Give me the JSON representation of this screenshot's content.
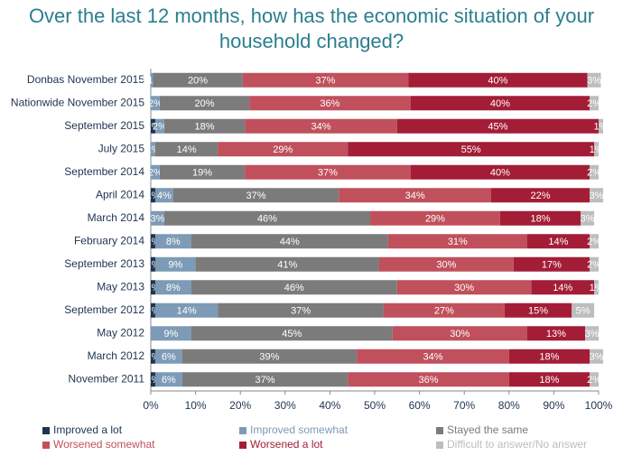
{
  "chart_data": {
    "type": "stacked_barh",
    "title": "Over the last 12 months, how has the economic situation of your household changed?",
    "categories": [
      "Donbas November 2015",
      "Nationwide November 2015",
      "September 2015",
      "July 2015",
      "September 2014",
      "April 2014",
      "March 2014",
      "February 2014",
      "September 2013",
      "May 2013",
      "September 2012",
      "May 2012",
      "March 2012",
      "November 2011"
    ],
    "series": [
      {
        "name": "Improved a lot",
        "color": "#1c3553",
        "values": [
          null,
          null,
          1,
          null,
          null,
          1,
          null,
          1,
          1,
          1,
          1,
          null,
          1,
          1
        ],
        "value_labels": [
          null,
          null,
          "1%",
          null,
          null,
          "1%",
          null,
          "1%",
          "1%",
          "1%",
          "1%",
          null,
          "1%",
          "1%"
        ]
      },
      {
        "name": "Improved somewhat",
        "color": "#7d9bb6",
        "values": [
          0.5,
          2,
          2,
          1,
          2,
          4,
          3,
          8,
          9,
          8,
          14,
          9,
          6,
          6
        ],
        "value_labels": [
          "<1%",
          "2%",
          "2%",
          "1%",
          "2%",
          "4%",
          "3%",
          "8%",
          "9%",
          "8%",
          "14%",
          "9%",
          "6%",
          "6%"
        ]
      },
      {
        "name": "Stayed the same",
        "color": "#7b7b7b",
        "values": [
          20,
          20,
          18,
          14,
          19,
          37,
          46,
          44,
          41,
          46,
          37,
          45,
          39,
          37
        ],
        "value_labels": [
          "20%",
          "20%",
          "18%",
          "14%",
          "19%",
          "37%",
          "46%",
          "44%",
          "41%",
          "46%",
          "37%",
          "45%",
          "39%",
          "37%"
        ]
      },
      {
        "name": "Worsened somewhat",
        "color": "#c0505c",
        "values": [
          37,
          36,
          34,
          29,
          37,
          34,
          29,
          31,
          30,
          30,
          27,
          30,
          34,
          36
        ],
        "value_labels": [
          "37%",
          "36%",
          "34%",
          "29%",
          "37%",
          "34%",
          "29%",
          "31%",
          "30%",
          "30%",
          "27%",
          "30%",
          "34%",
          "36%"
        ]
      },
      {
        "name": "Worsened a lot",
        "color": "#a31d36",
        "values": [
          40,
          40,
          45,
          55,
          40,
          22,
          18,
          14,
          17,
          14,
          15,
          13,
          18,
          18
        ],
        "value_labels": [
          "40%",
          "40%",
          "45%",
          "55%",
          "40%",
          "22%",
          "18%",
          "14%",
          "17%",
          "14%",
          "15%",
          "13%",
          "18%",
          "18%"
        ]
      },
      {
        "name": "Difficult to answer/No answer",
        "color": "#bdbdbd",
        "values": [
          3,
          2,
          1,
          1,
          2,
          3,
          3,
          2,
          2,
          1,
          5,
          3,
          3,
          2
        ],
        "value_labels": [
          "3%",
          "2%",
          "1%",
          "1%",
          "2%",
          "3%",
          "3%",
          "2%",
          "2%",
          "1%",
          "5%",
          "3%",
          "3%",
          "2%"
        ]
      }
    ],
    "xlim": [
      0,
      100
    ],
    "xticks": [
      {
        "value": 0,
        "label": "0%"
      },
      {
        "value": 10,
        "label": "10%"
      },
      {
        "value": 20,
        "label": "20%"
      },
      {
        "value": 30,
        "label": "30%"
      },
      {
        "value": 40,
        "label": "40%"
      },
      {
        "value": 50,
        "label": "50%"
      },
      {
        "value": 60,
        "label": "60%"
      },
      {
        "value": 70,
        "label": "70%"
      },
      {
        "value": 80,
        "label": "80%"
      },
      {
        "value": 90,
        "label": "90%"
      },
      {
        "value": 100,
        "label": "100%"
      }
    ],
    "grid": false,
    "legend": "bottom"
  }
}
